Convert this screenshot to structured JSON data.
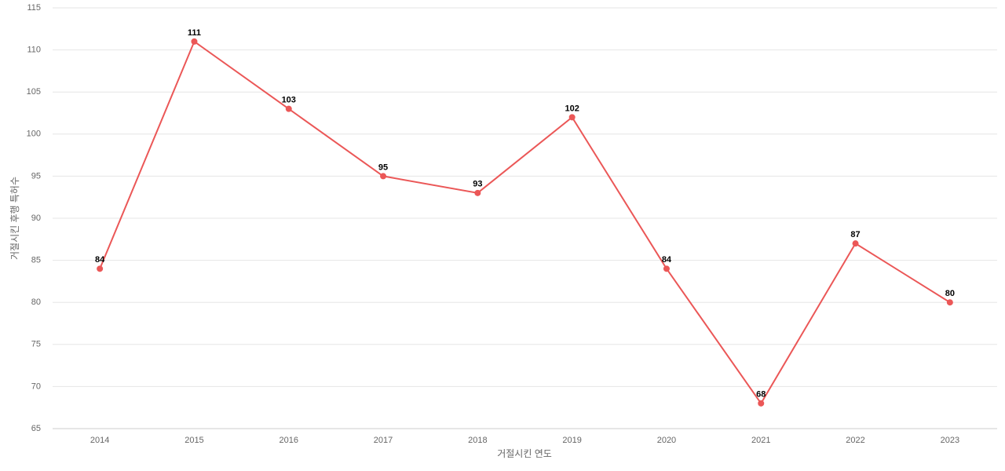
{
  "chart_data": {
    "type": "line",
    "x_label": "거절시킨 연도",
    "y_label": "거절시킨 후행 특허수",
    "categories": [
      "2014",
      "2015",
      "2016",
      "2017",
      "2018",
      "2019",
      "2020",
      "2021",
      "2022",
      "2023"
    ],
    "values": [
      84,
      111,
      103,
      95,
      93,
      102,
      84,
      68,
      87,
      80
    ],
    "color": "#eb5757",
    "ylim": [
      65,
      115
    ],
    "yticks": [
      65,
      70,
      75,
      80,
      85,
      90,
      95,
      100,
      105,
      110,
      115
    ],
    "grid": true
  }
}
